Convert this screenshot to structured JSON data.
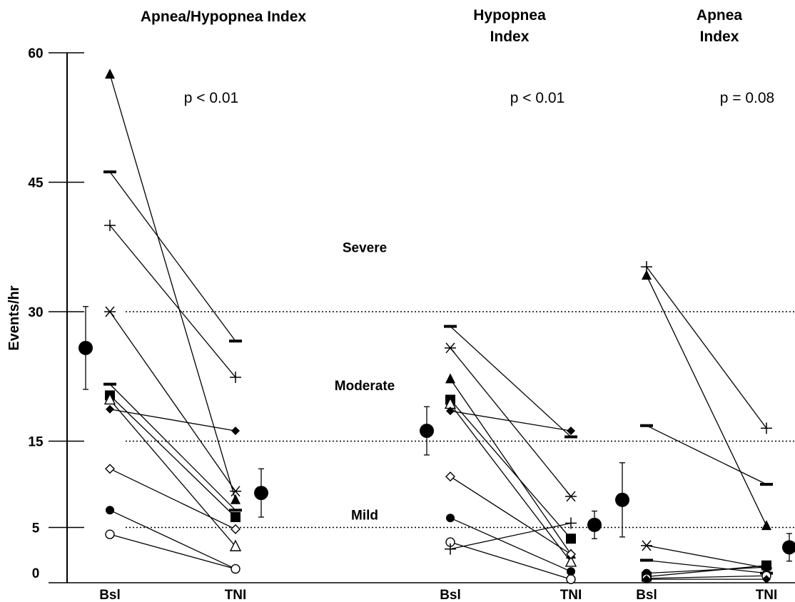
{
  "chart_data": {
    "type": "scatter",
    "description_style": "paired before/after lines per subject; mean ± SD shown as large dots",
    "ylabel": "Events/hr",
    "y_ticks": [
      "60",
      "45",
      "30",
      "15",
      "5",
      "0"
    ],
    "y_tick_values": [
      60,
      45,
      30,
      15,
      5,
      0
    ],
    "ylim": [
      -1,
      60
    ],
    "threshold_lines": [
      {
        "value": 30,
        "style": "dotted"
      },
      {
        "value": 15,
        "style": "dotted"
      },
      {
        "value": 5,
        "style": "dotted"
      }
    ],
    "severity_labels": [
      {
        "text": "Severe",
        "value": 37.5
      },
      {
        "text": "Moderate",
        "value": 21.5
      },
      {
        "text": "Mild",
        "value": 6.5
      }
    ],
    "panels": [
      {
        "title_lines": [
          "Apnea/Hypopnea Index"
        ],
        "p_value": "p < 0.01",
        "categories": [
          "Bsl",
          "TNI"
        ],
        "mean_bsl": {
          "mean": 25.8,
          "sd": 4.8
        },
        "mean_tni": {
          "mean": 9.0,
          "sd": 2.8
        },
        "subjects": [
          {
            "marker": "filled-triangle",
            "bsl": 57.5,
            "tni": 8.2
          },
          {
            "marker": "dash",
            "bsl": 46.2,
            "tni": 26.6
          },
          {
            "marker": "plus",
            "bsl": 40.0,
            "tni": 22.4
          },
          {
            "marker": "asterisk",
            "bsl": 30.0,
            "tni": 9.2
          },
          {
            "marker": "dash",
            "bsl": 21.6,
            "tni": 7.0
          },
          {
            "marker": "filled-square",
            "bsl": 20.3,
            "tni": 6.2
          },
          {
            "marker": "open-triangle",
            "bsl": 19.8,
            "tni": 2.8
          },
          {
            "marker": "filled-diamond",
            "bsl": 18.7,
            "tni": 16.2
          },
          {
            "marker": "open-diamond",
            "bsl": 11.8,
            "tni": 4.8
          },
          {
            "marker": "filled-circle",
            "bsl": 7.0,
            "tni": 0.2
          },
          {
            "marker": "open-circle",
            "bsl": 4.2,
            "tni": 0.2
          }
        ]
      },
      {
        "title_lines": [
          "Hypopnea",
          "Index"
        ],
        "p_value": "p < 0.01",
        "categories": [
          "Bsl",
          "TNI"
        ],
        "mean_bsl": {
          "mean": 16.2,
          "sd": 2.8
        },
        "mean_tni": {
          "mean": 5.3,
          "sd": 1.6
        },
        "subjects": [
          {
            "marker": "dash",
            "bsl": 28.3,
            "tni": 15.5
          },
          {
            "marker": "asterisk",
            "bsl": 25.8,
            "tni": 8.6
          },
          {
            "marker": "filled-triangle",
            "bsl": 22.2,
            "tni": 1.9
          },
          {
            "marker": "filled-square",
            "bsl": 19.8,
            "tni": 3.7
          },
          {
            "marker": "open-triangle",
            "bsl": 19.3,
            "tni": 1.0
          },
          {
            "marker": "filled-diamond",
            "bsl": 18.5,
            "tni": 16.2
          },
          {
            "marker": "open-diamond",
            "bsl": 10.9,
            "tni": 1.9
          },
          {
            "marker": "filled-circle",
            "bsl": 6.1,
            "tni": -0.1
          },
          {
            "marker": "open-circle",
            "bsl": 3.3,
            "tni": -1.0
          },
          {
            "marker": "plus",
            "bsl": 2.5,
            "tni": 5.5
          }
        ]
      },
      {
        "title_lines": [
          "Apnea",
          "Index"
        ],
        "p_value": "p = 0.08",
        "categories": [
          "Bsl",
          "TNI"
        ],
        "mean_bsl": {
          "mean": 8.2,
          "sd": 4.3
        },
        "mean_tni": {
          "mean": 2.7,
          "sd": 1.6
        },
        "subjects": [
          {
            "marker": "plus",
            "bsl": 35.2,
            "tni": 16.5
          },
          {
            "marker": "filled-triangle",
            "bsl": 34.2,
            "tni": 5.2
          },
          {
            "marker": "dash",
            "bsl": 16.8,
            "tni": 10.0
          },
          {
            "marker": "asterisk",
            "bsl": 2.9,
            "tni": 0.3
          },
          {
            "marker": "dash",
            "bsl": 1.2,
            "tni": -0.3
          },
          {
            "marker": "filled-circle",
            "bsl": -0.3,
            "tni": 0.4
          },
          {
            "marker": "filled-square",
            "bsl": -0.7,
            "tni": 0.6
          },
          {
            "marker": "open-circle",
            "bsl": -0.9,
            "tni": -0.6
          },
          {
            "marker": "filled-diamond",
            "bsl": -1.0,
            "tni": -1.0
          }
        ]
      }
    ],
    "legend": "none",
    "grid": false
  },
  "colors": {
    "ink": "#000000",
    "background": "#ffffff"
  }
}
